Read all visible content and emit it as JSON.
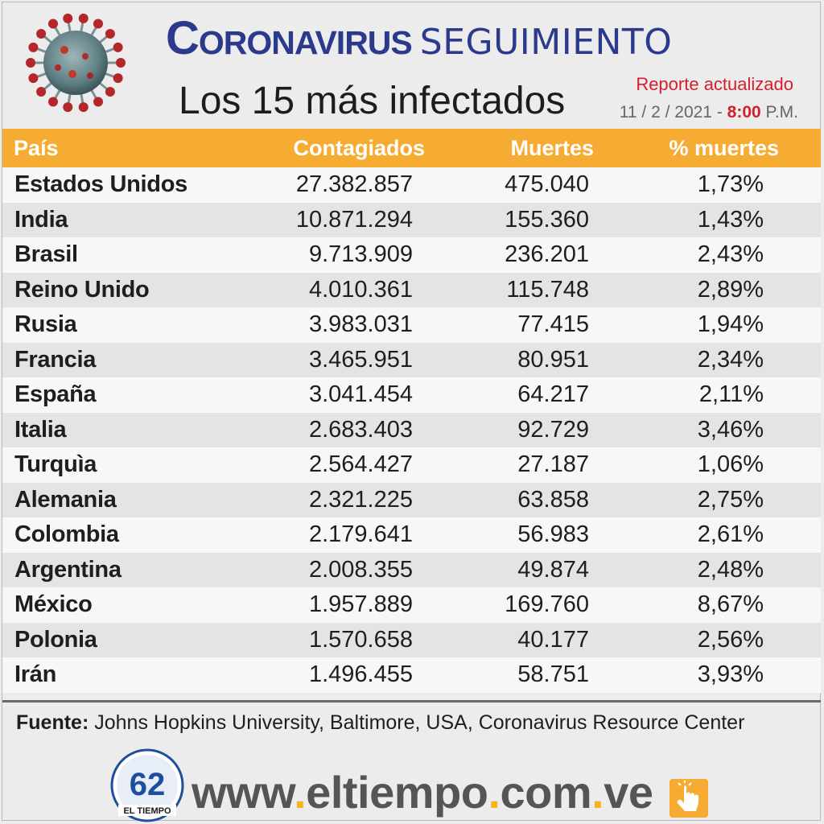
{
  "header": {
    "title_bold": "Coronavirus",
    "title_light": "SEGUIMIENTO",
    "subtitle": "Los 15 más infectados",
    "report_label": "Reporte actualizado",
    "report_date": "11 / 2 / 2021 -",
    "report_time": "8:00",
    "report_ampm": "P.M."
  },
  "table": {
    "headers": [
      "País",
      "Contagiados",
      "Muertes",
      "% muertes"
    ],
    "rows": [
      [
        "Estados Unidos",
        "27.382.857",
        "475.040",
        "1,73%"
      ],
      [
        "India",
        "10.871.294",
        "155.360",
        "1,43%"
      ],
      [
        "Brasil",
        "9.713.909",
        "236.201",
        "2,43%"
      ],
      [
        "Reino Unido",
        "4.010.361",
        "115.748",
        "2,89%"
      ],
      [
        "Rusia",
        "3.983.031",
        "77.415",
        "1,94%"
      ],
      [
        "Francia",
        "3.465.951",
        "80.951",
        "2,34%"
      ],
      [
        "España",
        "3.041.454",
        "64.217",
        "2,11%"
      ],
      [
        "Italia",
        "2.683.403",
        "92.729",
        "3,46%"
      ],
      [
        "Turquìa",
        "2.564.427",
        "27.187",
        "1,06%"
      ],
      [
        "Alemania",
        "2.321.225",
        "63.858",
        "2,75%"
      ],
      [
        "Colombia",
        "2.179.641",
        "56.983",
        "2,61%"
      ],
      [
        "Argentina",
        "2.008.355",
        "49.874",
        "2,48%"
      ],
      [
        "México",
        "1.957.889",
        "169.760",
        "8,67%"
      ],
      [
        "Polonia",
        "1.570.658",
        "40.177",
        "2,56%"
      ],
      [
        "Irán",
        "1.496.455",
        "58.751",
        "3,93%"
      ]
    ]
  },
  "source": {
    "label": "Fuente:",
    "text": "Johns Hopkins University, Baltimore, USA, Coronavirus Resource Center"
  },
  "footer": {
    "url_parts": [
      "www",
      ".",
      "eltiempo",
      ".",
      "com",
      ".",
      "ve"
    ],
    "logo_number": "62",
    "logo_name": "EL TIEMPO"
  },
  "colors": {
    "header_bar": "#f6ac33",
    "title_blue": "#2b3a8c",
    "accent_red": "#d3202d"
  },
  "icons": [
    "coronavirus-icon",
    "logo-62-icon",
    "pointing-hand-icon"
  ]
}
